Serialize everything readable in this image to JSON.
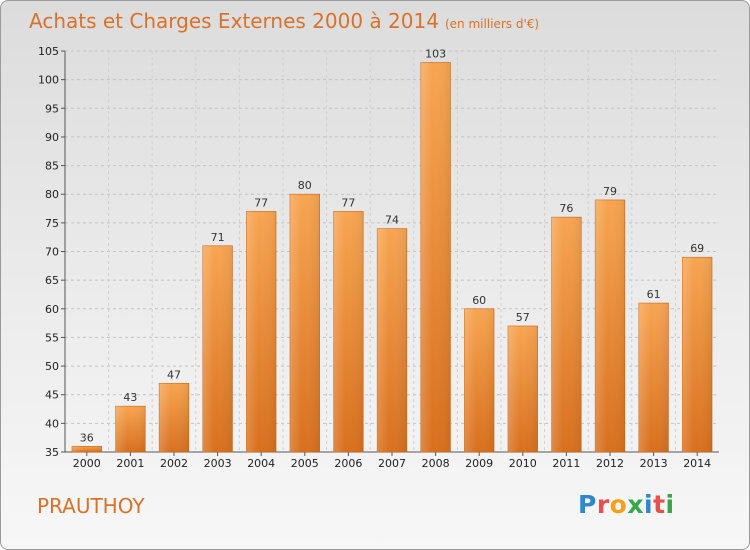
{
  "title": "Achats et Charges Externes 2000 à 2014",
  "subtitle": "(en milliers d'€)",
  "place": "PRAUTHOY",
  "logo": {
    "letters": [
      {
        "ch": "P",
        "color": "#2f86c8"
      },
      {
        "ch": "r",
        "color": "#e94f4f"
      },
      {
        "ch": "o",
        "color": "#f2a21a"
      },
      {
        "ch": "x",
        "color": "#3aa64a"
      },
      {
        "ch": "i",
        "color": "#2f86c8"
      },
      {
        "ch": "t",
        "color": "#e94f4f"
      },
      {
        "ch": "i",
        "color": "#3aa64a"
      }
    ]
  },
  "chart_data": {
    "type": "bar",
    "categories": [
      "2000",
      "2001",
      "2002",
      "2003",
      "2004",
      "2005",
      "2006",
      "2007",
      "2008",
      "2009",
      "2010",
      "2011",
      "2012",
      "2013",
      "2014"
    ],
    "values": [
      36,
      43,
      47,
      71,
      77,
      80,
      77,
      74,
      103,
      60,
      57,
      76,
      79,
      61,
      69
    ],
    "ylim": [
      35,
      105
    ],
    "yticks": [
      35,
      40,
      45,
      50,
      55,
      60,
      65,
      70,
      75,
      80,
      85,
      90,
      95,
      100,
      105
    ],
    "grid": true,
    "bar_color": "#f08a2e"
  }
}
